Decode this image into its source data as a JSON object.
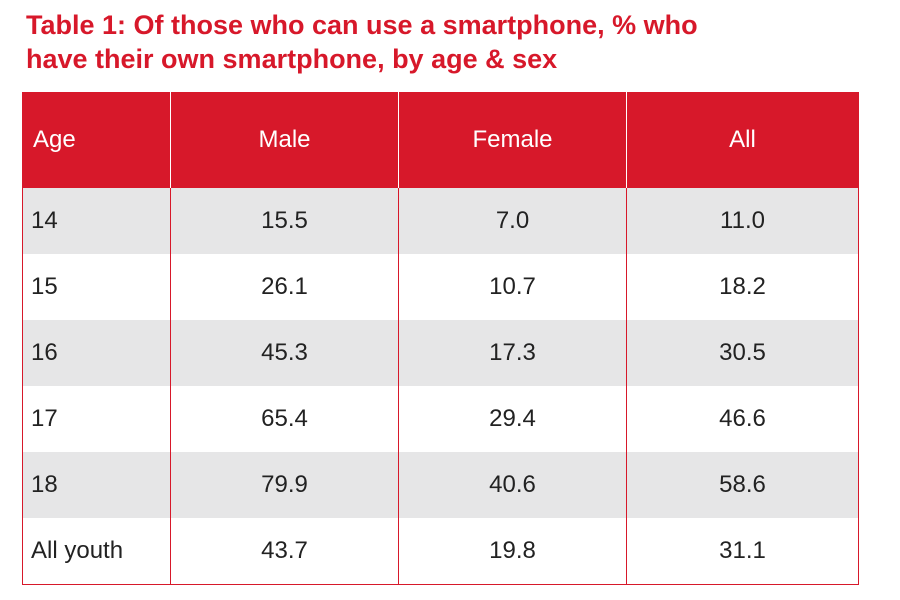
{
  "title": {
    "line1": "Table 1: Of those who can use a smartphone, % who",
    "line2": "have their own smartphone, by age & sex"
  },
  "colors": {
    "accent": "#d7182a",
    "row_shade": "#e6e6e7"
  },
  "table": {
    "headers": [
      "Age",
      "Male",
      "Female",
      "All"
    ],
    "rows": [
      [
        "14",
        "15.5",
        "7.0",
        "11.0"
      ],
      [
        "15",
        "26.1",
        "10.7",
        "18.2"
      ],
      [
        "16",
        "45.3",
        "17.3",
        "30.5"
      ],
      [
        "17",
        "65.4",
        "29.4",
        "46.6"
      ],
      [
        "18",
        "79.9",
        "40.6",
        "58.6"
      ],
      [
        "All youth",
        "43.7",
        "19.8",
        "31.1"
      ]
    ]
  }
}
